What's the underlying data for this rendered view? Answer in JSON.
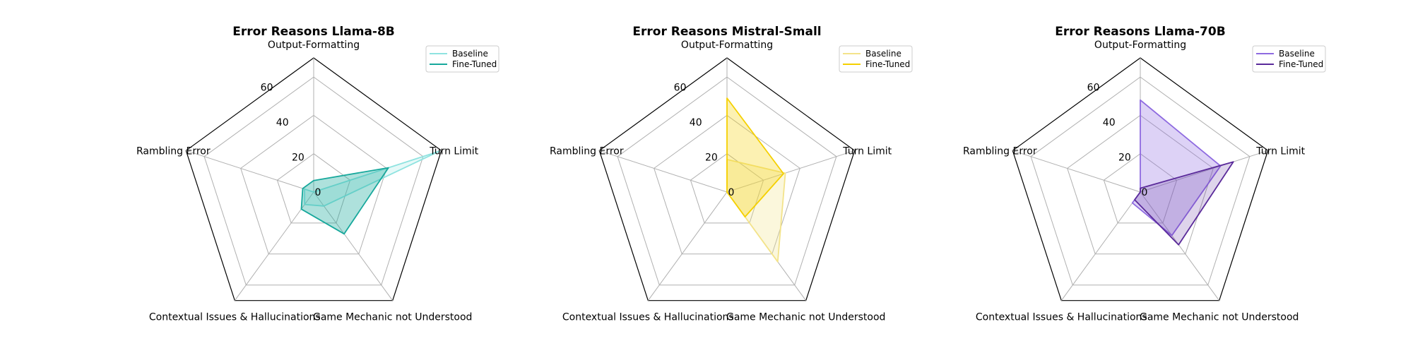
{
  "chart_data": [
    {
      "type": "radar",
      "title": "Error Reasons Llama-8B",
      "axes": [
        "Output-Formatting",
        "Turn Limit",
        "Game Mechanic not Understood",
        "Contextual Issues & Hallucinations",
        "Rambling Error"
      ],
      "rlim": [
        0,
        70
      ],
      "rticks": [
        0,
        20,
        40,
        60
      ],
      "grid": true,
      "legend": "top-right",
      "series": [
        {
          "name": "Baseline",
          "values": [
            0,
            69,
            9,
            8,
            5
          ],
          "color": "#8fe3e0",
          "fill_opacity": 0.22
        },
        {
          "name": "Fine-Tuned",
          "values": [
            6,
            41,
            27,
            11,
            6
          ],
          "color": "#17a89c",
          "fill_opacity": 0.35
        }
      ]
    },
    {
      "type": "radar",
      "title": "Error Reasons Mistral-Small",
      "axes": [
        "Output-Formatting",
        "Turn Limit",
        "Game Mechanic not Understood",
        "Contextual Issues & Hallucinations",
        "Rambling Error"
      ],
      "rlim": [
        0,
        70
      ],
      "rticks": [
        0,
        20,
        40,
        60
      ],
      "grid": true,
      "legend": "top-right",
      "series": [
        {
          "name": "Baseline",
          "values": [
            17,
            32,
            45,
            0,
            0
          ],
          "color": "#f3e38a",
          "fill_opacity": 0.3
        },
        {
          "name": "Fine-Tuned",
          "values": [
            49,
            31,
            16,
            0,
            0
          ],
          "color": "#f5d000",
          "fill_opacity": 0.3
        }
      ]
    },
    {
      "type": "radar",
      "title": "Error Reasons Llama-70B",
      "axes": [
        "Output-Formatting",
        "Turn Limit",
        "Game Mechanic not Understood",
        "Contextual Issues & Hallucinations",
        "Rambling Error"
      ],
      "rlim": [
        0,
        70
      ],
      "rticks": [
        0,
        20,
        40,
        60
      ],
      "grid": true,
      "legend": "top-right",
      "series": [
        {
          "name": "Baseline",
          "values": [
            48,
            44,
            28,
            7,
            0
          ],
          "color": "#8e6ae0",
          "fill_opacity": 0.3
        },
        {
          "name": "Fine-Tuned",
          "values": [
            2,
            51,
            34,
            5,
            0
          ],
          "color": "#5a2a9a",
          "fill_opacity": 0.2
        }
      ]
    }
  ]
}
